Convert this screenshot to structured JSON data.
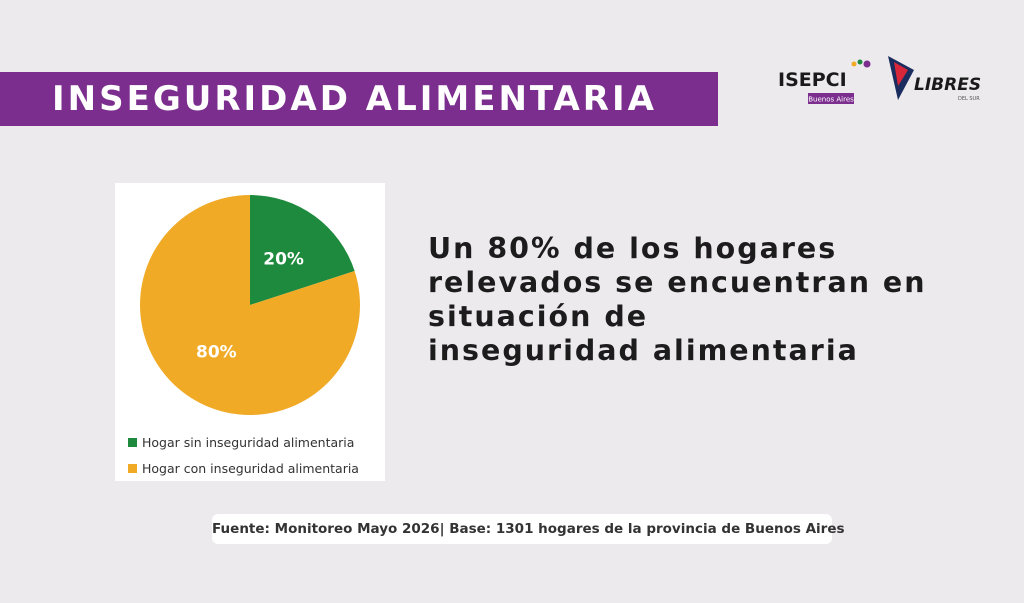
{
  "header": {
    "title": "INSEGURIDAD ALIMENTARIA"
  },
  "logos": {
    "isepci": {
      "main": "ISEPCI",
      "sub": "Buenos Aires"
    },
    "libres": {
      "main": "LIBRES",
      "sub": "DEL SUR"
    }
  },
  "chart_data": {
    "type": "pie",
    "categories": [
      "Hogar sin inseguridad alimentaria",
      "Hogar con inseguridad alimentaria"
    ],
    "values": [
      20,
      80
    ],
    "labels": [
      "20%",
      "80%"
    ],
    "colors": [
      "#1e8a3e",
      "#f0aa26"
    ],
    "legend_position": "bottom-left"
  },
  "headline": {
    "lines": [
      "Un 80% de los hogares",
      "relevados se encuentran en",
      "situación de",
      "inseguridad alimentaria"
    ]
  },
  "source": {
    "text": "Fuente: Monitoreo Mayo 2026| Base: 1301 hogares de la provincia de Buenos Aires"
  },
  "colors": {
    "title_bar": "#7b2e8e",
    "background": "#edeaee"
  }
}
